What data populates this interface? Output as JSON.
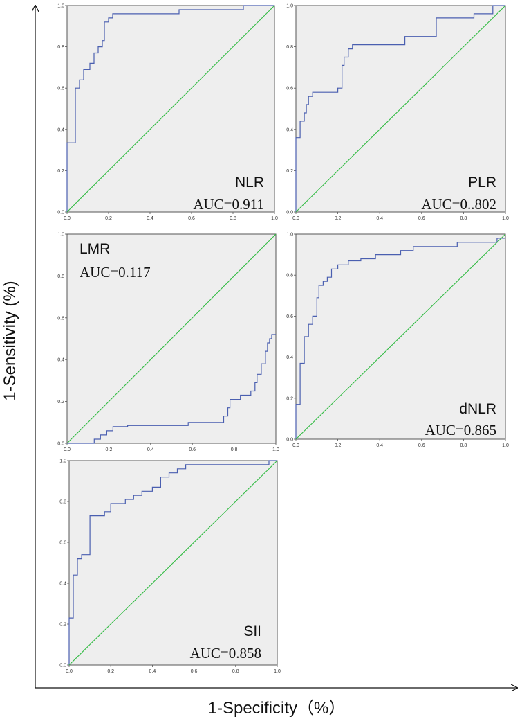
{
  "figure": {
    "y_axis_title": "1-Sensitivity (%)",
    "x_axis_title": "1-Specificity（%）"
  },
  "colors": {
    "roc_line": "#4a5fb0",
    "reference_line": "#33bb44",
    "plot_background": "#eeeeee",
    "frame": "#555555"
  },
  "chart_data": [
    {
      "type": "line",
      "marker": "NLR",
      "auc_text": "AUC=0.911",
      "xlim": [
        0,
        1
      ],
      "ylim": [
        0,
        1
      ],
      "x_ticks": [
        "0.0",
        "0.2",
        "0.4",
        "0.6",
        "0.8",
        "1.0"
      ],
      "y_ticks": [
        "0.0",
        "0.2",
        "0.4",
        "0.6",
        "0.8",
        "1.0"
      ],
      "grid": false,
      "series": [
        {
          "role": "roc",
          "x": [
            0,
            0,
            0.04,
            0.04,
            0.06,
            0.06,
            0.08,
            0.08,
            0.11,
            0.11,
            0.13,
            0.13,
            0.15,
            0.15,
            0.17,
            0.17,
            0.18,
            0.18,
            0.2,
            0.2,
            0.22,
            0.22,
            0.54,
            0.54,
            0.85,
            0.85,
            1
          ],
          "y": [
            0,
            0.335,
            0.335,
            0.6,
            0.6,
            0.64,
            0.64,
            0.69,
            0.69,
            0.72,
            0.72,
            0.77,
            0.77,
            0.8,
            0.8,
            0.83,
            0.83,
            0.92,
            0.92,
            0.94,
            0.94,
            0.96,
            0.96,
            0.98,
            0.98,
            1,
            1
          ]
        },
        {
          "role": "reference",
          "x": [
            0,
            1
          ],
          "y": [
            0,
            1
          ]
        }
      ]
    },
    {
      "type": "line",
      "marker": "PLR",
      "auc_text": "AUC=0..802",
      "xlim": [
        0,
        1
      ],
      "ylim": [
        0,
        1
      ],
      "x_ticks": [
        "0.0",
        "0.2",
        "0.4",
        "0.6",
        "0.8",
        "1.0"
      ],
      "y_ticks": [
        "0.0",
        "0.2",
        "0.4",
        "0.6",
        "0.8",
        "1.0"
      ],
      "grid": false,
      "series": [
        {
          "role": "roc",
          "x": [
            0,
            0,
            0.02,
            0.02,
            0.04,
            0.04,
            0.05,
            0.05,
            0.06,
            0.06,
            0.08,
            0.08,
            0.2,
            0.2,
            0.22,
            0.22,
            0.23,
            0.23,
            0.25,
            0.25,
            0.27,
            0.27,
            0.52,
            0.52,
            0.67,
            0.67,
            0.85,
            0.85,
            0.94,
            0.94,
            1
          ],
          "y": [
            0,
            0.36,
            0.36,
            0.44,
            0.44,
            0.48,
            0.48,
            0.52,
            0.52,
            0.56,
            0.56,
            0.58,
            0.58,
            0.6,
            0.6,
            0.71,
            0.71,
            0.75,
            0.75,
            0.79,
            0.79,
            0.81,
            0.81,
            0.85,
            0.85,
            0.94,
            0.94,
            0.96,
            0.96,
            1,
            1
          ]
        },
        {
          "role": "reference",
          "x": [
            0,
            1
          ],
          "y": [
            0,
            1
          ]
        }
      ]
    },
    {
      "type": "line",
      "marker": "LMR",
      "auc_text": "AUC=0.117",
      "xlim": [
        0,
        1
      ],
      "ylim": [
        0,
        1
      ],
      "x_ticks": [
        "0.0",
        "0.2",
        "0.4",
        "0.6",
        "0.8",
        "1.0"
      ],
      "y_ticks": [
        "0.0",
        "0.2",
        "0.4",
        "0.6",
        "0.8",
        "1.0"
      ],
      "grid": false,
      "series": [
        {
          "role": "roc",
          "x": [
            0,
            0.13,
            0.13,
            0.16,
            0.16,
            0.19,
            0.19,
            0.22,
            0.22,
            0.29,
            0.29,
            0.58,
            0.58,
            0.75,
            0.75,
            0.77,
            0.77,
            0.78,
            0.78,
            0.83,
            0.83,
            0.88,
            0.88,
            0.9,
            0.9,
            0.91,
            0.91,
            0.93,
            0.93,
            0.95,
            0.95,
            0.96,
            0.96,
            0.97,
            0.97,
            0.98,
            0.98,
            0.99,
            0.99,
            1
          ],
          "y": [
            0,
            0,
            0.02,
            0.02,
            0.04,
            0.04,
            0.06,
            0.06,
            0.08,
            0.08,
            0.085,
            0.085,
            0.1,
            0.1,
            0.13,
            0.13,
            0.17,
            0.17,
            0.21,
            0.21,
            0.23,
            0.23,
            0.25,
            0.25,
            0.29,
            0.29,
            0.33,
            0.33,
            0.38,
            0.38,
            0.44,
            0.44,
            0.48,
            0.48,
            0.5,
            0.5,
            0.52,
            0.52,
            0.52,
            0.52
          ]
        },
        {
          "role": "reference",
          "x": [
            0,
            1
          ],
          "y": [
            0,
            1
          ]
        }
      ]
    },
    {
      "type": "line",
      "marker": "dNLR",
      "auc_text": "AUC=0.865",
      "xlim": [
        0,
        1
      ],
      "ylim": [
        0,
        1
      ],
      "x_ticks": [
        "0.0",
        "0.2",
        "0.4",
        "0.6",
        "0.8",
        "1.0"
      ],
      "y_ticks": [
        "0.0",
        "0.2",
        "0.4",
        "0.6",
        "0.8",
        "1.0"
      ],
      "grid": false,
      "series": [
        {
          "role": "roc",
          "x": [
            0,
            0,
            0.02,
            0.02,
            0.04,
            0.04,
            0.06,
            0.06,
            0.08,
            0.08,
            0.1,
            0.1,
            0.11,
            0.11,
            0.13,
            0.13,
            0.15,
            0.15,
            0.17,
            0.17,
            0.2,
            0.2,
            0.25,
            0.25,
            0.31,
            0.31,
            0.38,
            0.38,
            0.5,
            0.5,
            0.56,
            0.56,
            0.77,
            0.77,
            0.96,
            0.96,
            1
          ],
          "y": [
            0,
            0.17,
            0.17,
            0.37,
            0.37,
            0.5,
            0.5,
            0.56,
            0.56,
            0.6,
            0.6,
            0.69,
            0.69,
            0.75,
            0.75,
            0.77,
            0.77,
            0.79,
            0.79,
            0.83,
            0.83,
            0.85,
            0.85,
            0.87,
            0.87,
            0.88,
            0.88,
            0.9,
            0.9,
            0.92,
            0.92,
            0.94,
            0.94,
            0.96,
            0.96,
            0.98,
            0.98
          ]
        },
        {
          "role": "reference",
          "x": [
            0,
            1
          ],
          "y": [
            0,
            1
          ]
        }
      ]
    },
    {
      "type": "line",
      "marker": "SII",
      "auc_text": "AUC=0.858",
      "xlim": [
        0,
        1
      ],
      "ylim": [
        0,
        1
      ],
      "x_ticks": [
        "0.0",
        "0.2",
        "0.4",
        "0.6",
        "0.8",
        "1.0"
      ],
      "y_ticks": [
        "0.0",
        "0.2",
        "0.4",
        "0.6",
        "0.8",
        "1.0"
      ],
      "grid": false,
      "series": [
        {
          "role": "roc",
          "x": [
            0,
            0,
            0.02,
            0.02,
            0.04,
            0.04,
            0.06,
            0.06,
            0.1,
            0.1,
            0.17,
            0.17,
            0.2,
            0.2,
            0.27,
            0.27,
            0.31,
            0.31,
            0.35,
            0.35,
            0.4,
            0.4,
            0.44,
            0.44,
            0.48,
            0.48,
            0.52,
            0.52,
            0.56,
            0.56,
            0.6,
            0.6,
            0.96,
            0.96,
            1
          ],
          "y": [
            0,
            0.23,
            0.23,
            0.44,
            0.44,
            0.52,
            0.52,
            0.54,
            0.54,
            0.73,
            0.73,
            0.75,
            0.75,
            0.79,
            0.79,
            0.81,
            0.81,
            0.83,
            0.83,
            0.85,
            0.85,
            0.87,
            0.87,
            0.92,
            0.92,
            0.94,
            0.94,
            0.96,
            0.96,
            0.98,
            0.98,
            0.98,
            0.98,
            1,
            1
          ]
        },
        {
          "role": "reference",
          "x": [
            0,
            1
          ],
          "y": [
            0,
            1
          ]
        }
      ]
    }
  ]
}
